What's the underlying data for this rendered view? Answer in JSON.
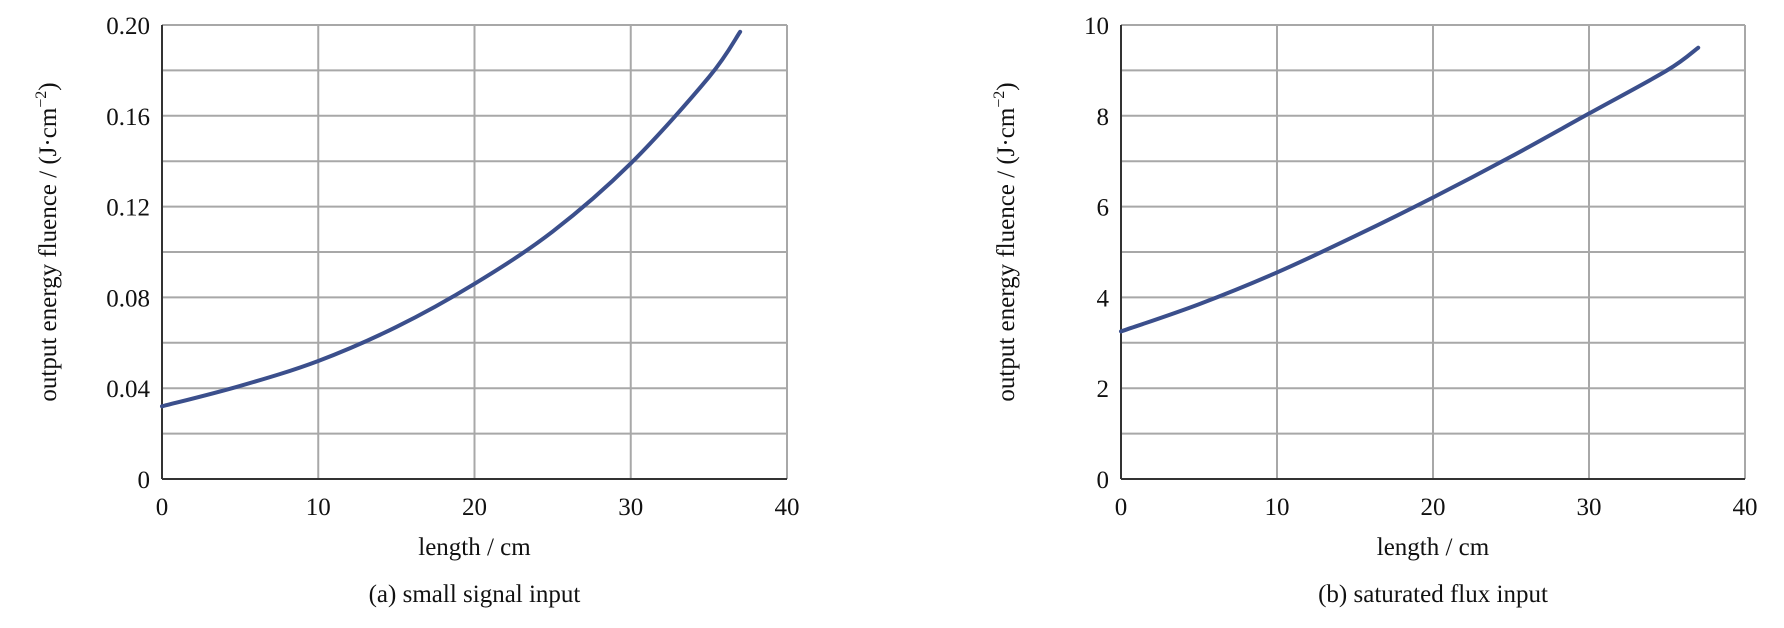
{
  "chart_data": [
    {
      "type": "line",
      "caption": "(a) small signal input",
      "xlabel": "length / cm",
      "ylabel_main": "output energy fluence / (J·cm",
      "ylabel_sup": "−2",
      "ylabel_tail": ")",
      "xlim": [
        0,
        40
      ],
      "ylim": [
        0,
        0.2
      ],
      "xticks": [
        "0",
        "10",
        "20",
        "30",
        "40"
      ],
      "yticks": [
        "0",
        "0.04",
        "0.08",
        "0.12",
        "0.16",
        "0.20"
      ],
      "ytick_values": [
        0,
        0.04,
        0.08,
        0.12,
        0.16,
        0.2
      ],
      "xtick_values": [
        0,
        10,
        20,
        30,
        40
      ],
      "grid": true,
      "grid_minor_y": [
        0.02,
        0.06,
        0.1,
        0.14,
        0.18
      ],
      "line_color": "#3b4f8c",
      "series": [
        {
          "x": [
            0,
            5,
            10,
            15,
            20,
            25,
            30,
            35,
            37
          ],
          "y": [
            0.032,
            0.041,
            0.052,
            0.067,
            0.086,
            0.109,
            0.139,
            0.177,
            0.197
          ]
        }
      ]
    },
    {
      "type": "line",
      "caption": "(b) saturated flux input",
      "xlabel": "length / cm",
      "ylabel_main": "output energy fluence / (J·cm",
      "ylabel_sup": "−2",
      "ylabel_tail": ")",
      "xlim": [
        0,
        40
      ],
      "ylim": [
        0,
        10
      ],
      "xticks": [
        "0",
        "10",
        "20",
        "30",
        "40"
      ],
      "yticks": [
        "0",
        "2",
        "4",
        "6",
        "8",
        "10"
      ],
      "ytick_values": [
        0,
        2,
        4,
        6,
        8,
        10
      ],
      "xtick_values": [
        0,
        10,
        20,
        30,
        40
      ],
      "grid": true,
      "grid_minor_y": [
        1,
        3,
        5,
        7,
        9
      ],
      "line_color": "#3b4f8c",
      "series": [
        {
          "x": [
            0,
            5,
            10,
            15,
            20,
            25,
            30,
            35,
            37
          ],
          "y": [
            3.25,
            3.85,
            4.55,
            5.35,
            6.2,
            7.1,
            8.05,
            9.0,
            9.5
          ]
        }
      ]
    }
  ]
}
